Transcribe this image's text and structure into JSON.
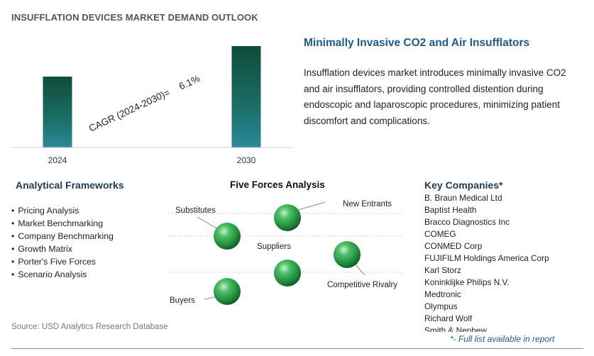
{
  "header": {
    "title": "INSUFFLATION DEVICES MARKET DEMAND OUTLOOK"
  },
  "chart_data": {
    "type": "bar",
    "categories": [
      "2024",
      "2030"
    ],
    "values": [
      1.0,
      1.43
    ],
    "title": "",
    "xlabel": "",
    "ylabel": "",
    "annotation": {
      "cagr_label": "CAGR (2024-2030)=",
      "cagr_value": "6.1%"
    },
    "colors": {
      "bar_top": "#0f4d3a",
      "bar_mid": "#1a6b62",
      "bar_bottom": "#2b8a99",
      "axis": "#cccccc"
    }
  },
  "summary": {
    "title": "Minimally Invasive CO2 and Air Insufflators",
    "text": "Insufflation devices market introduces minimally invasive CO2 and air insufflators, providing controlled distention during endoscopic and laparoscopic procedures, minimizing patient discomfort and complications."
  },
  "frameworks": {
    "title": "Analytical Frameworks",
    "items": [
      "Pricing Analysis",
      "Market Benchmarking",
      "Company Benchmarking",
      "Growth Matrix",
      "Porter's Five Forces",
      "Scenario Analysis"
    ]
  },
  "five_forces": {
    "title": "Five Forces Analysis",
    "labels": {
      "substitutes": "Substitutes",
      "new_entrants": "New Entrants",
      "suppliers": "Suppliers",
      "competitive_rivalry": "Competitive Rivalry",
      "buyers": "Buyers"
    },
    "sphere_color": "#2a9a4a"
  },
  "companies": {
    "title": "Key Companies*",
    "items": [
      "B. Braun Medical Ltd",
      "Baptist Health",
      "Bracco Diagnostics Inc",
      "COMEG",
      "CONMED Corp",
      "FUJIFILM Holdings America Corp",
      "Karl Storz",
      "Koninklijke Philips N.V.",
      "Medtronic",
      "Olympus",
      "Richard Wolf",
      "Smith & Nephew"
    ],
    "note": "*- Full list available in report"
  },
  "footer": {
    "source": "Source: USD Analytics Research Database"
  }
}
